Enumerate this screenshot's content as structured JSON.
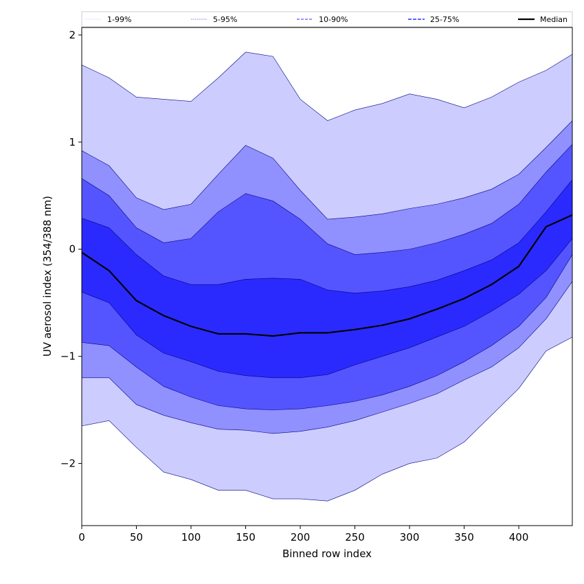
{
  "chart_data": {
    "type": "area",
    "title": "",
    "xlabel": "Binned row index",
    "ylabel": "UV aerosol index (354/388 nm)",
    "xlim": [
      0,
      449
    ],
    "ylim": [
      -2.58,
      2.07
    ],
    "xticks": [
      0,
      50,
      100,
      150,
      200,
      250,
      300,
      350,
      400
    ],
    "yticks": [
      -2,
      -1,
      0,
      1,
      2
    ],
    "ytick_labels": [
      "−2",
      "−1",
      "0",
      "1",
      "2"
    ],
    "x": [
      0,
      25,
      50,
      75,
      100,
      125,
      150,
      175,
      200,
      225,
      250,
      275,
      300,
      325,
      350,
      375,
      400,
      425,
      449
    ],
    "legend": {
      "placement": "top",
      "entries": [
        "1-99%",
        "5-95%",
        "10-90%",
        "25-75%",
        "Median"
      ]
    },
    "bands": [
      {
        "name": "1-99%",
        "color": "#ccccff",
        "upper": [
          1.72,
          1.6,
          1.42,
          1.4,
          1.38,
          1.6,
          1.84,
          1.8,
          1.4,
          1.2,
          1.3,
          1.36,
          1.45,
          1.4,
          1.32,
          1.42,
          1.56,
          1.67,
          1.82
        ],
        "lower": [
          -1.65,
          -1.6,
          -1.85,
          -2.08,
          -2.15,
          -2.25,
          -2.25,
          -2.33,
          -2.33,
          -2.35,
          -2.25,
          -2.1,
          -2.0,
          -1.95,
          -1.8,
          -1.55,
          -1.3,
          -0.95,
          -0.82
        ]
      },
      {
        "name": "5-95%",
        "color": "#9090ff",
        "upper": [
          0.92,
          0.78,
          0.48,
          0.37,
          0.42,
          0.7,
          0.97,
          0.85,
          0.55,
          0.28,
          0.3,
          0.33,
          0.38,
          0.42,
          0.48,
          0.56,
          0.7,
          0.95,
          1.2
        ],
        "lower": [
          -1.2,
          -1.2,
          -1.45,
          -1.55,
          -1.62,
          -1.68,
          -1.69,
          -1.72,
          -1.7,
          -1.66,
          -1.6,
          -1.52,
          -1.44,
          -1.35,
          -1.22,
          -1.1,
          -0.92,
          -0.65,
          -0.3
        ]
      },
      {
        "name": "10-90%",
        "color": "#5555ff",
        "upper": [
          0.66,
          0.5,
          0.2,
          0.06,
          0.1,
          0.35,
          0.52,
          0.45,
          0.28,
          0.05,
          -0.05,
          -0.03,
          0.0,
          0.06,
          0.14,
          0.24,
          0.42,
          0.72,
          0.98
        ],
        "lower": [
          -0.87,
          -0.9,
          -1.1,
          -1.28,
          -1.38,
          -1.46,
          -1.49,
          -1.5,
          -1.49,
          -1.46,
          -1.42,
          -1.36,
          -1.28,
          -1.18,
          -1.05,
          -0.9,
          -0.72,
          -0.45,
          -0.05
        ]
      },
      {
        "name": "25-75%",
        "color": "#2a2aff",
        "upper": [
          0.29,
          0.2,
          -0.05,
          -0.25,
          -0.33,
          -0.33,
          -0.28,
          -0.27,
          -0.28,
          -0.38,
          -0.41,
          -0.39,
          -0.35,
          -0.29,
          -0.2,
          -0.1,
          0.06,
          0.35,
          0.65
        ],
        "lower": [
          -0.4,
          -0.5,
          -0.8,
          -0.97,
          -1.05,
          -1.14,
          -1.18,
          -1.2,
          -1.2,
          -1.17,
          -1.08,
          -1.0,
          -0.92,
          -0.82,
          -0.72,
          -0.58,
          -0.42,
          -0.2,
          0.1
        ]
      }
    ],
    "median": {
      "name": "Median",
      "color": "#000000",
      "values": [
        -0.03,
        -0.2,
        -0.48,
        -0.62,
        -0.72,
        -0.79,
        -0.79,
        -0.81,
        -0.78,
        -0.78,
        -0.75,
        -0.71,
        -0.65,
        -0.56,
        -0.46,
        -0.33,
        -0.16,
        0.21,
        0.32
      ]
    }
  }
}
